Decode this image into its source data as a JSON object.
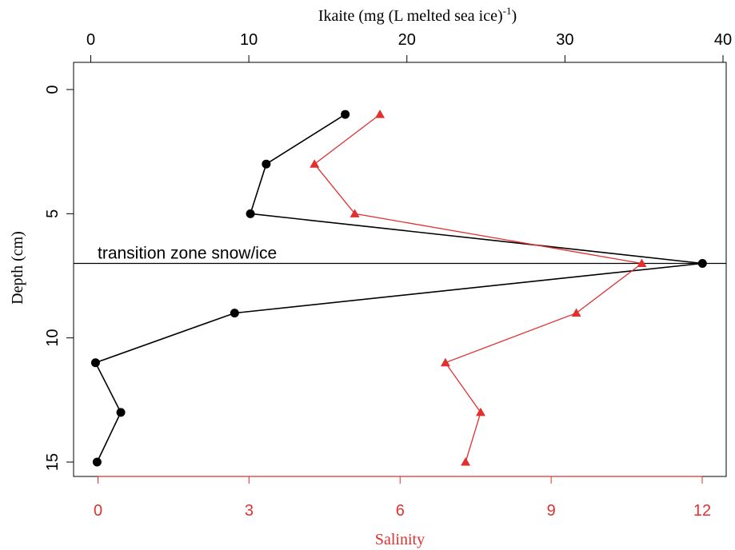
{
  "chart_data": {
    "type": "line",
    "title": "",
    "top_axis": {
      "label": "Ikaite (mg (L melted sea ice)",
      "label_sup": "-1",
      "label_close": ")",
      "range": [
        0,
        40
      ],
      "ticks": [
        "0",
        "10",
        "20",
        "30",
        "40"
      ],
      "color": "#000000"
    },
    "bottom_axis": {
      "label": "Salinity",
      "range": [
        0,
        12
      ],
      "ticks": [
        "0",
        "3",
        "6",
        "9",
        "12"
      ],
      "color": "#e03030"
    },
    "left_axis": {
      "label": "Depth (cm)",
      "range": [
        0,
        15
      ],
      "reversed": true,
      "ticks": [
        "0",
        "5",
        "10",
        "15"
      ]
    },
    "annotation": {
      "text": "transition zone snow/ice",
      "depth": 7
    },
    "series": [
      {
        "axis": "top",
        "marker": "circle",
        "color": "#000000",
        "x": [
          16.1,
          11.1,
          10.1,
          38.7,
          9.1,
          0.3,
          1.9,
          0.4
        ],
        "y": [
          1,
          3,
          5,
          7,
          9,
          11,
          13,
          15
        ]
      },
      {
        "axis": "bottom",
        "marker": "triangle",
        "color": "#e03030",
        "x": [
          5.6,
          4.3,
          5.1,
          10.8,
          9.5,
          6.9,
          7.6,
          7.3
        ],
        "y": [
          1,
          3,
          5,
          7,
          9,
          11,
          13,
          15
        ]
      }
    ],
    "grid": false,
    "legend": "none"
  }
}
